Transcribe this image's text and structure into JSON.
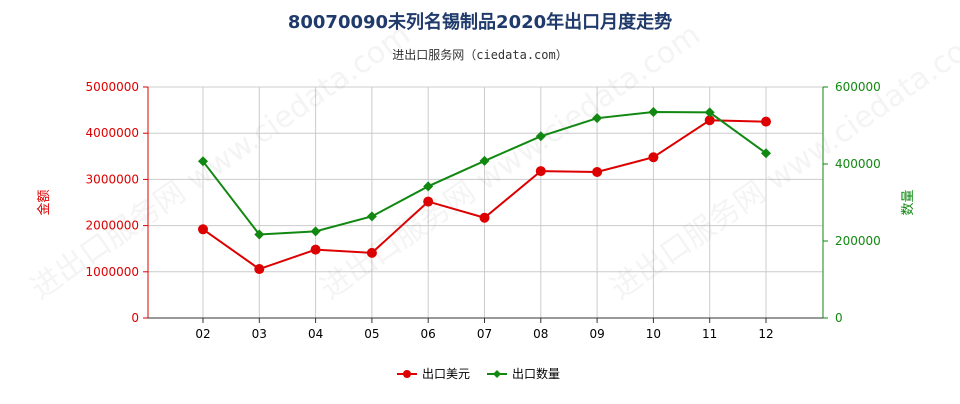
{
  "title": "80070090未列名锡制品2020年出口月度走势",
  "subtitle": "进出口服务网（ciedata.com）",
  "watermark_text": "进出口服务网 www.ciedata.com",
  "colors": {
    "left_axis": "#dd0000",
    "right_axis": "#118811",
    "title": "#1f3a6b",
    "grid": "#cccccc"
  },
  "chart_data": {
    "type": "line",
    "categories": [
      "02",
      "03",
      "04",
      "05",
      "06",
      "07",
      "08",
      "09",
      "10",
      "11",
      "12"
    ],
    "series": [
      {
        "name": "出口美元",
        "axis": "left",
        "color": "#dd0000",
        "marker": "circle",
        "values": [
          1920000,
          1060000,
          1480000,
          1410000,
          2520000,
          2170000,
          3180000,
          3160000,
          3480000,
          4280000,
          4250000
        ]
      },
      {
        "name": "出口数量",
        "axis": "right",
        "color": "#118811",
        "marker": "diamond",
        "values": [
          407000,
          217000,
          225000,
          264000,
          342000,
          408000,
          472000,
          519000,
          535000,
          534000,
          428000
        ]
      }
    ],
    "y_left": {
      "label": "金额",
      "min": 0,
      "max": 5000000,
      "ticks": [
        "0",
        "1000000",
        "2000000",
        "3000000",
        "4000000",
        "5000000"
      ]
    },
    "y_right": {
      "label": "数量",
      "min": 0,
      "max": 600000,
      "ticks": [
        "0",
        "200000",
        "400000",
        "600000"
      ]
    },
    "grid": true,
    "legend_position": "bottom-center"
  }
}
